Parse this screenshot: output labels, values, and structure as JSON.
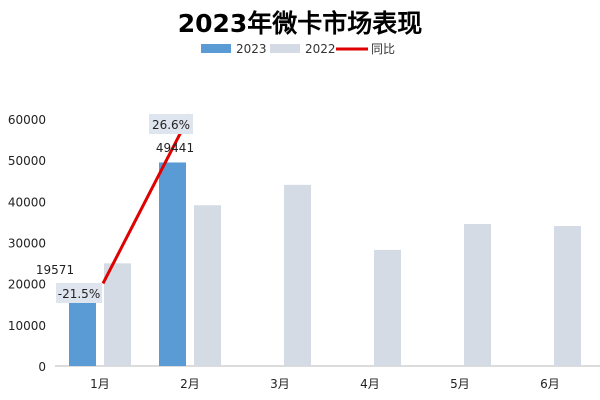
{
  "chart_data": {
    "type": "bar",
    "title": "2023年微卡市场表现",
    "categories": [
      "1月",
      "2月",
      "3月",
      "4月",
      "5月",
      "6月"
    ],
    "series": [
      {
        "name": "2023",
        "type": "bar",
        "values": [
          19571,
          49441,
          null,
          null,
          null,
          null
        ],
        "color": "#5b9bd5"
      },
      {
        "name": "2022",
        "type": "bar",
        "values": [
          24930,
          39050,
          44000,
          28200,
          34500,
          34000
        ],
        "color": "#d5dbe5"
      },
      {
        "name": "同比",
        "type": "line",
        "values": [
          -21.5,
          26.6,
          null,
          null,
          null,
          null
        ],
        "labels": [
          "-21.5%",
          "26.6%"
        ],
        "color": "#e00000"
      }
    ],
    "data_labels": {
      "2023": [
        "19571",
        "49441"
      ]
    },
    "yticks": [
      "0",
      "10000",
      "20000",
      "30000",
      "40000",
      "50000",
      "60000"
    ],
    "ylim": [
      0,
      60000
    ],
    "grid": false,
    "legend_position": "top"
  }
}
